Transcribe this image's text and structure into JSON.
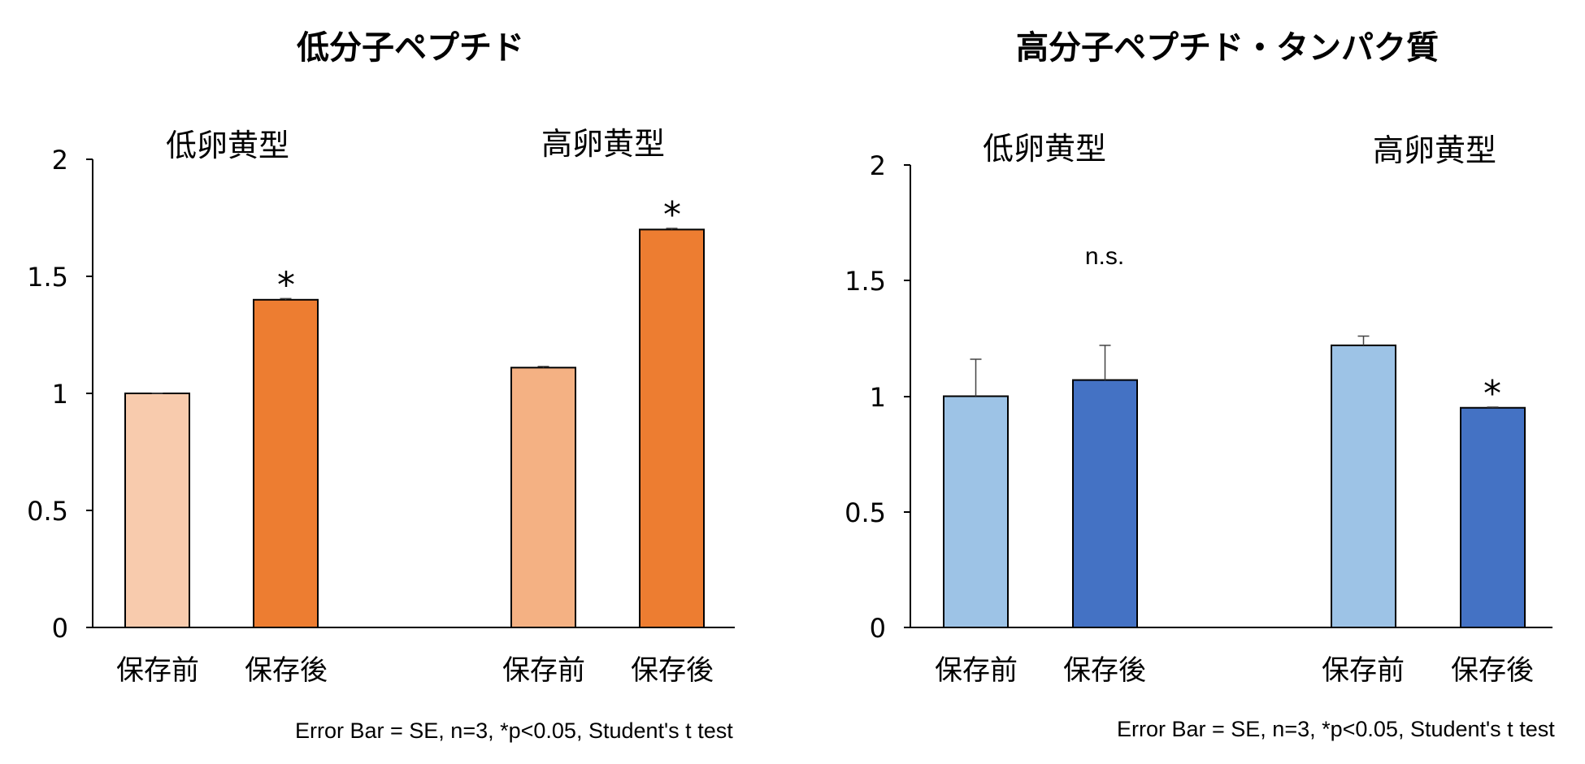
{
  "chart_data": [
    {
      "type": "bar",
      "title": "低分子ペプチド",
      "ylim": [
        0,
        2
      ],
      "yticks": [
        "0",
        "0.5",
        "1",
        "1.5",
        "2"
      ],
      "groups": [
        {
          "label": "低卵黄型",
          "bars": [
            {
              "category": "保存前",
              "value": 1.0,
              "error": 0.0,
              "color": "#F8CBAD",
              "significance": ""
            },
            {
              "category": "保存後",
              "value": 1.4,
              "error": 0.005,
              "color": "#ED7D31",
              "significance": "*"
            }
          ]
        },
        {
          "label": "高卵黄型",
          "bars": [
            {
              "category": "保存前",
              "value": 1.11,
              "error": 0.005,
              "color": "#F4B183",
              "significance": ""
            },
            {
              "category": "保存後",
              "value": 1.7,
              "error": 0.005,
              "color": "#ED7D31",
              "significance": "*"
            }
          ]
        }
      ],
      "note": "Error Bar = SE, n=3, *p<0.05, Student's t test"
    },
    {
      "type": "bar",
      "title": "高分子ペプチド・タンパク質",
      "ylim": [
        0,
        2
      ],
      "yticks": [
        "0",
        "0.5",
        "1",
        "1.5",
        "2"
      ],
      "groups": [
        {
          "label": "低卵黄型",
          "bars": [
            {
              "category": "保存前",
              "value": 1.0,
              "error": 0.16,
              "color": "#9DC3E6",
              "significance": ""
            },
            {
              "category": "保存後",
              "value": 1.07,
              "error": 0.15,
              "color": "#4472C4",
              "significance": "n.s."
            }
          ]
        },
        {
          "label": "高卵黄型",
          "bars": [
            {
              "category": "保存前",
              "value": 1.22,
              "error": 0.04,
              "color": "#9DC3E6",
              "significance": ""
            },
            {
              "category": "保存後",
              "value": 0.95,
              "error": 0.003,
              "color": "#4472C4",
              "significance": "*"
            }
          ]
        }
      ],
      "note": "Error Bar = SE, n=3, *p<0.05, Student's t test"
    }
  ]
}
